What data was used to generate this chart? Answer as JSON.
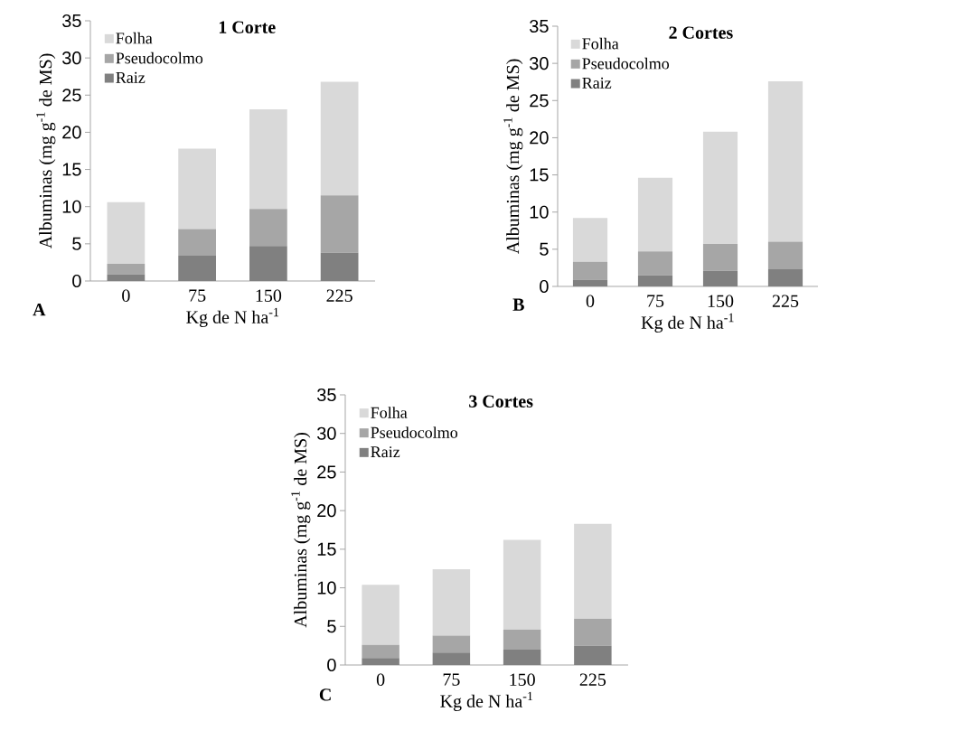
{
  "chart_data": [
    {
      "type": "bar",
      "stacked": true,
      "title": "**1 Corte**",
      "xlabel": "Kg de N ha$^{-1}$",
      "ylabel": "Albuminas (mg g$^{-1}$ de MS)",
      "categories": [
        "0",
        "75",
        "150",
        "225"
      ],
      "ylim": [
        0,
        35
      ],
      "yticks": [
        0,
        5,
        10,
        15,
        20,
        25,
        30,
        35
      ],
      "legend": "top left",
      "annotations": [
        "**A**"
      ],
      "series": [
        {
          "name": "Raiz",
          "color": "#808080",
          "values": [
            0.9,
            3.4,
            4.7,
            3.8
          ]
        },
        {
          "name": "Pseudocolmo",
          "color": "#a6a6a6",
          "values": [
            1.4,
            3.6,
            5.0,
            7.7
          ]
        },
        {
          "name": "Folha",
          "color": "#d9d9d9",
          "values": [
            8.3,
            10.8,
            13.4,
            15.3
          ]
        }
      ]
    },
    {
      "type": "bar",
      "stacked": true,
      "title": "**2 Cortes**",
      "xlabel": "Kg de N ha$^{-1}$",
      "ylabel": "Albuminas (mg g$^{-1}$ de MS)",
      "categories": [
        "0",
        "75",
        "150",
        "225"
      ],
      "ylim": [
        0,
        35
      ],
      "yticks": [
        0,
        5,
        10,
        15,
        20,
        25,
        30,
        35
      ],
      "legend": "top left",
      "annotations": [
        "**B**"
      ],
      "series": [
        {
          "name": "Raiz",
          "color": "#808080",
          "values": [
            0.9,
            1.5,
            2.1,
            2.3
          ]
        },
        {
          "name": "Pseudocolmo",
          "color": "#a6a6a6",
          "values": [
            2.4,
            3.2,
            3.6,
            3.7
          ]
        },
        {
          "name": "Folha",
          "color": "#d9d9d9",
          "values": [
            5.9,
            9.9,
            15.1,
            21.6
          ]
        }
      ]
    },
    {
      "type": "bar",
      "stacked": true,
      "title": "**3 Cortes**",
      "xlabel": "Kg de N ha$^{-1}$",
      "ylabel": "Albuminas (mg g$^{-1}$ de MS)",
      "categories": [
        "0",
        "75",
        "150",
        "225"
      ],
      "ylim": [
        0,
        35
      ],
      "yticks": [
        0,
        5,
        10,
        15,
        20,
        25,
        30,
        35
      ],
      "legend": "top left",
      "annotations": [
        "**C**"
      ],
      "series": [
        {
          "name": "Raiz",
          "color": "#808080",
          "values": [
            0.9,
            1.6,
            2.0,
            2.5
          ]
        },
        {
          "name": "Pseudocolmo",
          "color": "#a6a6a6",
          "values": [
            1.7,
            2.2,
            2.6,
            3.5
          ]
        },
        {
          "name": "Folha",
          "color": "#d9d9d9",
          "values": [
            7.8,
            8.6,
            11.6,
            12.3
          ]
        }
      ]
    }
  ]
}
